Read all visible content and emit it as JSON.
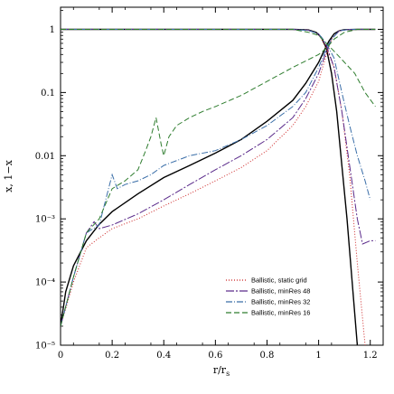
{
  "chart_data": {
    "type": "line",
    "title": "",
    "xlabel": "r/r",
    "xlabel_sub": "s",
    "ylabel": "x, 1−x",
    "xlim": [
      0,
      1.25
    ],
    "ylim_log10": [
      -5,
      0.35
    ],
    "yscale": "log",
    "grid": false,
    "legend_position": "bottom-right",
    "x_ticks": [
      {
        "value": 0,
        "label": "0"
      },
      {
        "value": 0.2,
        "label": "0.2"
      },
      {
        "value": 0.4,
        "label": "0.4"
      },
      {
        "value": 0.6,
        "label": "0.6"
      },
      {
        "value": 0.8,
        "label": "0.8"
      },
      {
        "value": 1.0,
        "label": "1"
      },
      {
        "value": 1.2,
        "label": "1.2"
      }
    ],
    "y_ticks": [
      {
        "value": 1,
        "label": "1"
      },
      {
        "value": 0.1,
        "label": "0.1"
      },
      {
        "value": 0.01,
        "label": "0.01"
      },
      {
        "value": 0.001,
        "label": "10⁻³"
      },
      {
        "value": 0.0001,
        "label": "10⁻⁴"
      },
      {
        "value": 1e-05,
        "label": "10⁻⁵"
      }
    ],
    "series": [
      {
        "name": "",
        "color": "#000000",
        "dash": "",
        "width": 1.4,
        "curves": [
          [
            [
              0.0,
              2e-05
            ],
            [
              0.02,
              7e-05
            ],
            [
              0.05,
              0.00018
            ],
            [
              0.1,
              0.00045
            ],
            [
              0.15,
              0.00082
            ],
            [
              0.2,
              0.0013
            ],
            [
              0.3,
              0.0025
            ],
            [
              0.4,
              0.0045
            ],
            [
              0.5,
              0.007
            ],
            [
              0.6,
              0.011
            ],
            [
              0.7,
              0.018
            ],
            [
              0.8,
              0.035
            ],
            [
              0.9,
              0.075
            ],
            [
              0.95,
              0.14
            ],
            [
              1.0,
              0.3
            ],
            [
              1.02,
              0.45
            ],
            [
              1.04,
              0.65
            ],
            [
              1.06,
              0.85
            ],
            [
              1.08,
              0.95
            ],
            [
              1.1,
              0.99
            ],
            [
              1.15,
              1.0
            ],
            [
              1.22,
              1.0
            ]
          ],
          [
            [
              0.0,
              1.0
            ],
            [
              0.9,
              1.0
            ],
            [
              0.96,
              0.98
            ],
            [
              0.99,
              0.9
            ],
            [
              1.01,
              0.75
            ],
            [
              1.03,
              0.5
            ],
            [
              1.05,
              0.2
            ],
            [
              1.07,
              0.05
            ],
            [
              1.09,
              0.007
            ],
            [
              1.11,
              0.001
            ],
            [
              1.13,
              0.0001
            ],
            [
              1.15,
              1e-05
            ]
          ]
        ]
      },
      {
        "name": "Ballistic, static grid",
        "color": "#cc2222",
        "dash": "1,2",
        "width": 1.0,
        "curves": [
          [
            [
              0.0,
              2e-05
            ],
            [
              0.05,
              0.0001
            ],
            [
              0.1,
              0.00035
            ],
            [
              0.15,
              0.0005
            ],
            [
              0.2,
              0.0007
            ],
            [
              0.3,
              0.001
            ],
            [
              0.4,
              0.0016
            ],
            [
              0.5,
              0.0025
            ],
            [
              0.6,
              0.004
            ],
            [
              0.7,
              0.0065
            ],
            [
              0.8,
              0.012
            ],
            [
              0.9,
              0.03
            ],
            [
              0.95,
              0.06
            ],
            [
              1.0,
              0.15
            ],
            [
              1.03,
              0.4
            ],
            [
              1.05,
              0.7
            ],
            [
              1.08,
              0.95
            ],
            [
              1.12,
              1.0
            ],
            [
              1.22,
              1.0
            ]
          ],
          [
            [
              0.0,
              1.0
            ],
            [
              0.9,
              1.0
            ],
            [
              0.96,
              0.97
            ],
            [
              1.0,
              0.85
            ],
            [
              1.03,
              0.5
            ],
            [
              1.06,
              0.25
            ],
            [
              1.09,
              0.05
            ],
            [
              1.12,
              0.005
            ],
            [
              1.15,
              0.0002
            ],
            [
              1.18,
              1e-05
            ]
          ]
        ]
      },
      {
        "name": "Ballistic, minRes 48",
        "color": "#5a2a8a",
        "dash": "9,2,2,2",
        "width": 1.0,
        "curves": [
          [
            [
              0.0,
              2e-05
            ],
            [
              0.05,
              0.00012
            ],
            [
              0.1,
              0.0006
            ],
            [
              0.13,
              0.0009
            ],
            [
              0.15,
              0.0007
            ],
            [
              0.2,
              0.0008
            ],
            [
              0.3,
              0.0012
            ],
            [
              0.4,
              0.002
            ],
            [
              0.5,
              0.0035
            ],
            [
              0.6,
              0.006
            ],
            [
              0.7,
              0.01
            ],
            [
              0.8,
              0.018
            ],
            [
              0.9,
              0.04
            ],
            [
              0.95,
              0.08
            ],
            [
              1.0,
              0.2
            ],
            [
              1.03,
              0.45
            ],
            [
              1.05,
              0.7
            ],
            [
              1.08,
              0.95
            ],
            [
              1.12,
              1.0
            ],
            [
              1.22,
              1.0
            ]
          ],
          [
            [
              0.0,
              1.0
            ],
            [
              0.9,
              1.0
            ],
            [
              0.96,
              0.97
            ],
            [
              1.0,
              0.85
            ],
            [
              1.03,
              0.55
            ],
            [
              1.06,
              0.25
            ],
            [
              1.09,
              0.05
            ],
            [
              1.12,
              0.007
            ],
            [
              1.15,
              0.001
            ],
            [
              1.17,
              0.0004
            ],
            [
              1.2,
              0.00045
            ],
            [
              1.22,
              0.00045
            ]
          ]
        ]
      },
      {
        "name": "Ballistic, minRes 32",
        "color": "#3a6ea8",
        "dash": "7,2,1,2",
        "width": 1.0,
        "curves": [
          [
            [
              0.0,
              2e-05
            ],
            [
              0.05,
              0.00012
            ],
            [
              0.1,
              0.0006
            ],
            [
              0.15,
              0.0008
            ],
            [
              0.2,
              0.005
            ],
            [
              0.22,
              0.003
            ],
            [
              0.25,
              0.0035
            ],
            [
              0.3,
              0.004
            ],
            [
              0.35,
              0.005
            ],
            [
              0.4,
              0.007
            ],
            [
              0.5,
              0.01
            ],
            [
              0.6,
              0.012
            ],
            [
              0.7,
              0.018
            ],
            [
              0.8,
              0.03
            ],
            [
              0.9,
              0.06
            ],
            [
              0.95,
              0.1
            ],
            [
              1.0,
              0.25
            ],
            [
              1.03,
              0.5
            ],
            [
              1.05,
              0.7
            ],
            [
              1.08,
              0.95
            ],
            [
              1.12,
              1.0
            ],
            [
              1.22,
              1.0
            ]
          ],
          [
            [
              0.0,
              1.0
            ],
            [
              0.9,
              1.0
            ],
            [
              0.96,
              0.96
            ],
            [
              1.0,
              0.85
            ],
            [
              1.03,
              0.6
            ],
            [
              1.06,
              0.35
            ],
            [
              1.09,
              0.1
            ],
            [
              1.12,
              0.03
            ],
            [
              1.15,
              0.01
            ],
            [
              1.18,
              0.004
            ],
            [
              1.2,
              0.002
            ]
          ]
        ]
      },
      {
        "name": "Ballistic, minRes 16",
        "color": "#2e7d2e",
        "dash": "6,3",
        "width": 1.0,
        "curves": [
          [
            [
              0.0,
              2e-05
            ],
            [
              0.05,
              0.00012
            ],
            [
              0.1,
              0.0006
            ],
            [
              0.15,
              0.001
            ],
            [
              0.2,
              0.003
            ],
            [
              0.25,
              0.004
            ],
            [
              0.3,
              0.006
            ],
            [
              0.33,
              0.012
            ],
            [
              0.35,
              0.02
            ],
            [
              0.37,
              0.04
            ],
            [
              0.39,
              0.015
            ],
            [
              0.4,
              0.01
            ],
            [
              0.42,
              0.02
            ],
            [
              0.45,
              0.03
            ],
            [
              0.5,
              0.04
            ],
            [
              0.55,
              0.05
            ],
            [
              0.6,
              0.06
            ],
            [
              0.7,
              0.09
            ],
            [
              0.8,
              0.15
            ],
            [
              0.9,
              0.25
            ],
            [
              1.0,
              0.4
            ],
            [
              1.03,
              0.5
            ],
            [
              1.06,
              0.7
            ],
            [
              1.1,
              0.9
            ],
            [
              1.15,
              1.0
            ],
            [
              1.22,
              1.0
            ]
          ],
          [
            [
              0.0,
              1.0
            ],
            [
              0.9,
              1.0
            ],
            [
              0.96,
              0.9
            ],
            [
              1.0,
              0.8
            ],
            [
              1.03,
              0.6
            ],
            [
              1.06,
              0.45
            ],
            [
              1.1,
              0.3
            ],
            [
              1.14,
              0.2
            ],
            [
              1.18,
              0.1
            ],
            [
              1.22,
              0.06
            ]
          ]
        ]
      }
    ]
  }
}
